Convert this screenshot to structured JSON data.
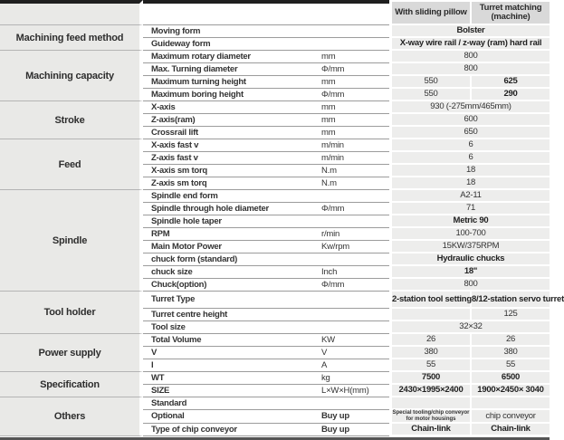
{
  "table": {
    "value_headers": [
      "With sliding pillow",
      "Turret matching (machine)"
    ],
    "groups": [
      {
        "category": "Machining feed method",
        "rows": [
          {
            "param": "Moving form",
            "unit": "",
            "values": [
              {
                "text": "Bolster",
                "bold": true
              }
            ]
          },
          {
            "param": "Guideway form",
            "unit": "",
            "values": [
              {
                "text": "X-way wire rail / z-way (ram) hard rail",
                "bold": true
              }
            ]
          }
        ]
      },
      {
        "category": "Machining capacity",
        "rows": [
          {
            "param": "Maximum rotary diameter",
            "unit": "mm",
            "values": [
              {
                "text": "800"
              }
            ]
          },
          {
            "param": "Max. Turning diameter",
            "unit": "Φ/mm",
            "values": [
              {
                "text": "800"
              }
            ]
          },
          {
            "param": "Maximum turning height",
            "unit": "mm",
            "values": [
              {
                "text": "550"
              },
              {
                "text": "625",
                "bold": true
              }
            ]
          },
          {
            "param": "Maximum boring height",
            "unit": "Φ/mm",
            "values": [
              {
                "text": "550"
              },
              {
                "text": "290",
                "bold": true
              }
            ]
          }
        ]
      },
      {
        "category": "Stroke",
        "rows": [
          {
            "param": "X-axis",
            "unit": "mm",
            "values": [
              {
                "text": "930 (-275mm/465mm)"
              }
            ]
          },
          {
            "param": "Z-axis(ram)",
            "unit": "mm",
            "values": [
              {
                "text": "600"
              }
            ]
          },
          {
            "param": "Crossrail lift",
            "unit": "mm",
            "values": [
              {
                "text": "650"
              }
            ]
          }
        ]
      },
      {
        "category": "Feed",
        "rows": [
          {
            "param": "X-axis fast v",
            "unit": "m/min",
            "values": [
              {
                "text": "6"
              }
            ]
          },
          {
            "param": "Z-axis fast v",
            "unit": "m/min",
            "values": [
              {
                "text": "6"
              }
            ]
          },
          {
            "param": "X-axis sm torq",
            "unit": "N.m",
            "values": [
              {
                "text": "18"
              }
            ]
          },
          {
            "param": "Z-axis sm torq",
            "unit": "N.m",
            "values": [
              {
                "text": "18"
              }
            ]
          }
        ]
      },
      {
        "category": "Spindle",
        "rows": [
          {
            "param": "Spindle end form",
            "unit": "",
            "values": [
              {
                "text": "A2-11"
              }
            ]
          },
          {
            "param": "Spindle through hole diameter",
            "unit": "Φ/mm",
            "values": [
              {
                "text": "71"
              }
            ]
          },
          {
            "param": "Spindle hole taper",
            "unit": "",
            "values": [
              {
                "text": "Metric 90",
                "bold": true
              }
            ]
          },
          {
            "param": "RPM",
            "unit": "r/min",
            "values": [
              {
                "text": "100-700"
              }
            ]
          },
          {
            "param": "Main Motor Power",
            "unit": "Kw/rpm",
            "values": [
              {
                "text": "15KW/375RPM"
              }
            ]
          },
          {
            "param": "chuck form (standard)",
            "unit": "",
            "values": [
              {
                "text": "Hydraulic chucks",
                "bold": true
              }
            ]
          },
          {
            "param": "chuck size",
            "unit": "Inch",
            "values": [
              {
                "text": "18\"",
                "bold": true
              }
            ]
          },
          {
            "param": "Chuck(option)",
            "unit": "Φ/mm",
            "values": [
              {
                "text": "800"
              }
            ]
          }
        ]
      },
      {
        "category": "Tool holder",
        "rows": [
          {
            "param": "Turret Type",
            "unit": "",
            "tall": true,
            "values": [
              {
                "text": "2-station tool setting",
                "bold": true
              },
              {
                "text": "8/12-station servo turret",
                "bold": true
              }
            ]
          },
          {
            "param": "Turret centre height",
            "unit": "",
            "values": [
              {
                "text": ""
              },
              {
                "text": "125"
              }
            ]
          },
          {
            "param": "Tool size",
            "unit": "",
            "values": [
              {
                "text": "32×32"
              }
            ]
          }
        ]
      },
      {
        "category": "Power supply",
        "rows": [
          {
            "param": "Total Volume",
            "unit": "KW",
            "values": [
              {
                "text": "26"
              },
              {
                "text": "26"
              }
            ]
          },
          {
            "param": "V",
            "unit": "V",
            "values": [
              {
                "text": "380"
              },
              {
                "text": "380"
              }
            ]
          },
          {
            "param": "I",
            "unit": "A",
            "values": [
              {
                "text": "55"
              },
              {
                "text": "55"
              }
            ]
          }
        ]
      },
      {
        "category": "Specification",
        "rows": [
          {
            "param": "WT",
            "unit": "kg",
            "values": [
              {
                "text": "7500",
                "bold": true
              },
              {
                "text": "6500",
                "bold": true
              }
            ]
          },
          {
            "param": "SIZE",
            "unit": "L×W×H(mm)",
            "values": [
              {
                "text": "2430×1995×2400",
                "bold": true
              },
              {
                "text": "1900×2450× 3040",
                "bold": true
              }
            ]
          }
        ]
      },
      {
        "category": "Others",
        "rows": [
          {
            "param": "Standard",
            "unit": "",
            "values": [
              {
                "text": ""
              },
              {
                "text": ""
              }
            ]
          },
          {
            "param": "Optional",
            "unit": "Buy up",
            "unit_bold": true,
            "values": [
              {
                "text": "Special tooling/chip conveyor for motor housings",
                "small": true
              },
              {
                "text": "chip conveyor"
              }
            ]
          },
          {
            "param": "Type of chip conveyor",
            "unit": "Buy up",
            "unit_bold": true,
            "values": [
              {
                "text": "Chain-link",
                "bold": true
              },
              {
                "text": "Chain-link",
                "bold": true
              }
            ]
          }
        ]
      }
    ]
  }
}
